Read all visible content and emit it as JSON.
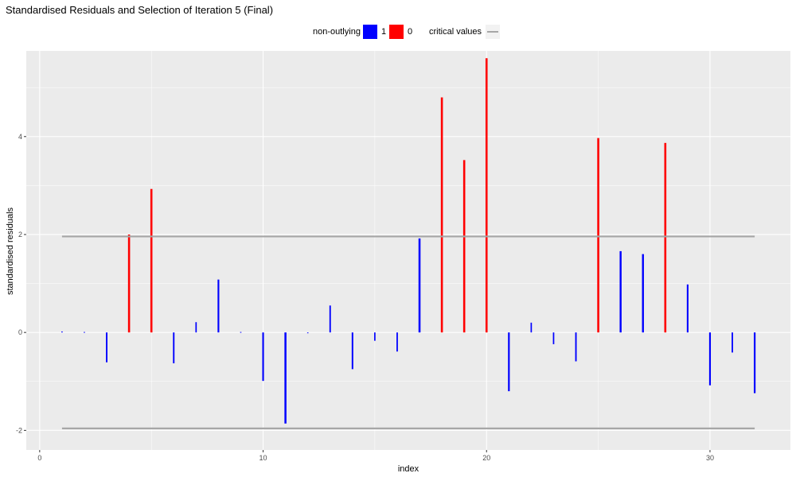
{
  "chart_data": {
    "type": "bar",
    "title": "Standardised Residuals and Selection of Iteration 5 (Final)",
    "xlabel": "index",
    "ylabel": "standardised residuals",
    "xlim": [
      -0.6,
      33.6
    ],
    "ylim": [
      -2.4,
      5.75
    ],
    "x_ticks": [
      0,
      10,
      20,
      30
    ],
    "y_ticks": [
      -2,
      0,
      2,
      4
    ],
    "grid": true,
    "legend": {
      "position": "top",
      "title": "non-outlying",
      "entries": [
        {
          "label": "1",
          "color": "#0000ff"
        },
        {
          "label": "0",
          "color": "#ff0000"
        }
      ],
      "line_label": "critical values"
    },
    "critical_values": [
      1.96,
      -1.96
    ],
    "colors": {
      "non_outlying": "#0000ff",
      "outlying": "#ff0000",
      "critical_line": "#a6a6a6",
      "panel": "#ebebeb",
      "grid": "#ffffff"
    },
    "x": [
      1,
      2,
      3,
      4,
      5,
      6,
      7,
      8,
      9,
      10,
      11,
      12,
      13,
      14,
      15,
      16,
      17,
      18,
      19,
      20,
      21,
      22,
      23,
      24,
      25,
      26,
      27,
      28,
      29,
      30,
      31,
      32
    ],
    "values": [
      0.02,
      0.01,
      -0.61,
      2.0,
      2.93,
      -0.63,
      0.21,
      1.08,
      0.01,
      -0.99,
      -1.86,
      0.0,
      0.55,
      -0.75,
      -0.17,
      -0.39,
      1.92,
      4.8,
      3.52,
      5.6,
      -1.2,
      0.2,
      -0.24,
      -0.59,
      3.97,
      1.66,
      1.6,
      3.87,
      0.98,
      -1.08,
      -0.41,
      -1.24
    ],
    "non_outlying": [
      1,
      1,
      1,
      0,
      0,
      1,
      1,
      1,
      1,
      1,
      1,
      1,
      1,
      1,
      1,
      1,
      1,
      0,
      0,
      0,
      1,
      1,
      1,
      1,
      0,
      1,
      1,
      0,
      1,
      1,
      1,
      1
    ]
  }
}
